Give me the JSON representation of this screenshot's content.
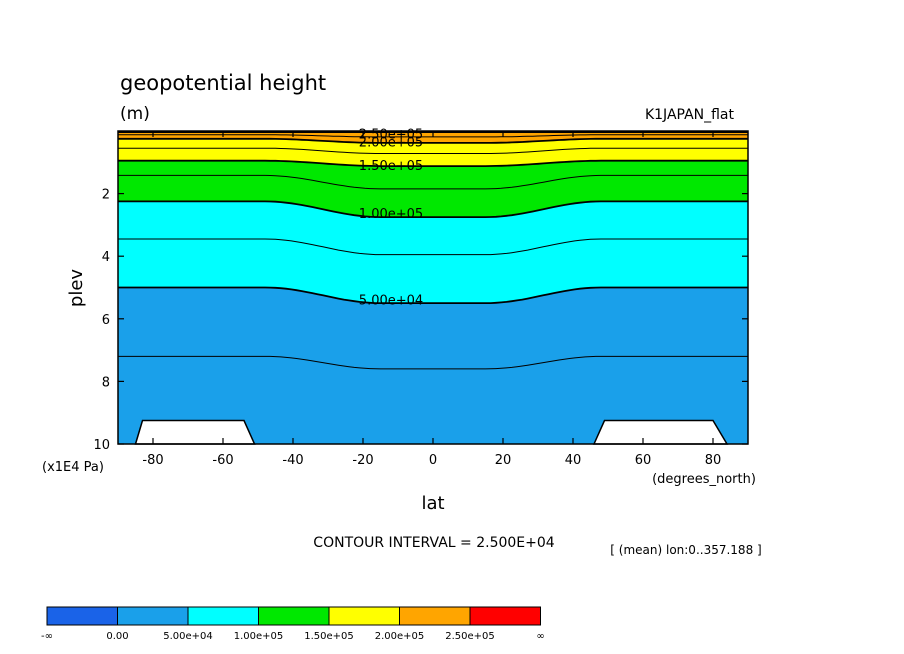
{
  "chart_data": {
    "type": "contour",
    "title": "geopotential height",
    "units": "(m)",
    "dataset_label": "K1JAPAN_flat",
    "xlabel": "lat",
    "xunits": "(degrees_north)",
    "ylabel": "plev",
    "yunits": "(x1E4 Pa)",
    "xlim": [
      -90,
      90
    ],
    "ylim": [
      10,
      0
    ],
    "x_ticks": [
      -80,
      -60,
      -40,
      -20,
      0,
      20,
      40,
      60,
      80
    ],
    "y_ticks": [
      2,
      4,
      6,
      8,
      10
    ],
    "contour_interval_text": "CONTOUR INTERVAL = 2.500E+04",
    "mean_text": "[ (mean) lon:0..357.188 ]",
    "contour_labels": [
      "2.50e+05",
      "2.00e+05",
      "1.50e+05",
      "1.00e+05",
      "5.00e+04"
    ],
    "fill_boundaries_plev": {
      "250000": [
        0.04,
        0.04
      ],
      "200000": [
        0.25,
        0.38
      ],
      "150000": [
        0.95,
        1.12
      ],
      "100000": [
        2.25,
        2.75
      ],
      "50000": [
        5.0,
        5.5
      ]
    },
    "colorbar": {
      "colors": [
        "#1a63e8",
        "#1aa0ea",
        "#00ffff",
        "#00e800",
        "#ffff00",
        "#ffa500",
        "#ff0000"
      ],
      "labels": [
        "-∞",
        "0.00",
        "5.00e+04",
        "1.00e+05",
        "1.50e+05",
        "2.00e+05",
        "2.50e+05",
        "∞"
      ]
    }
  }
}
